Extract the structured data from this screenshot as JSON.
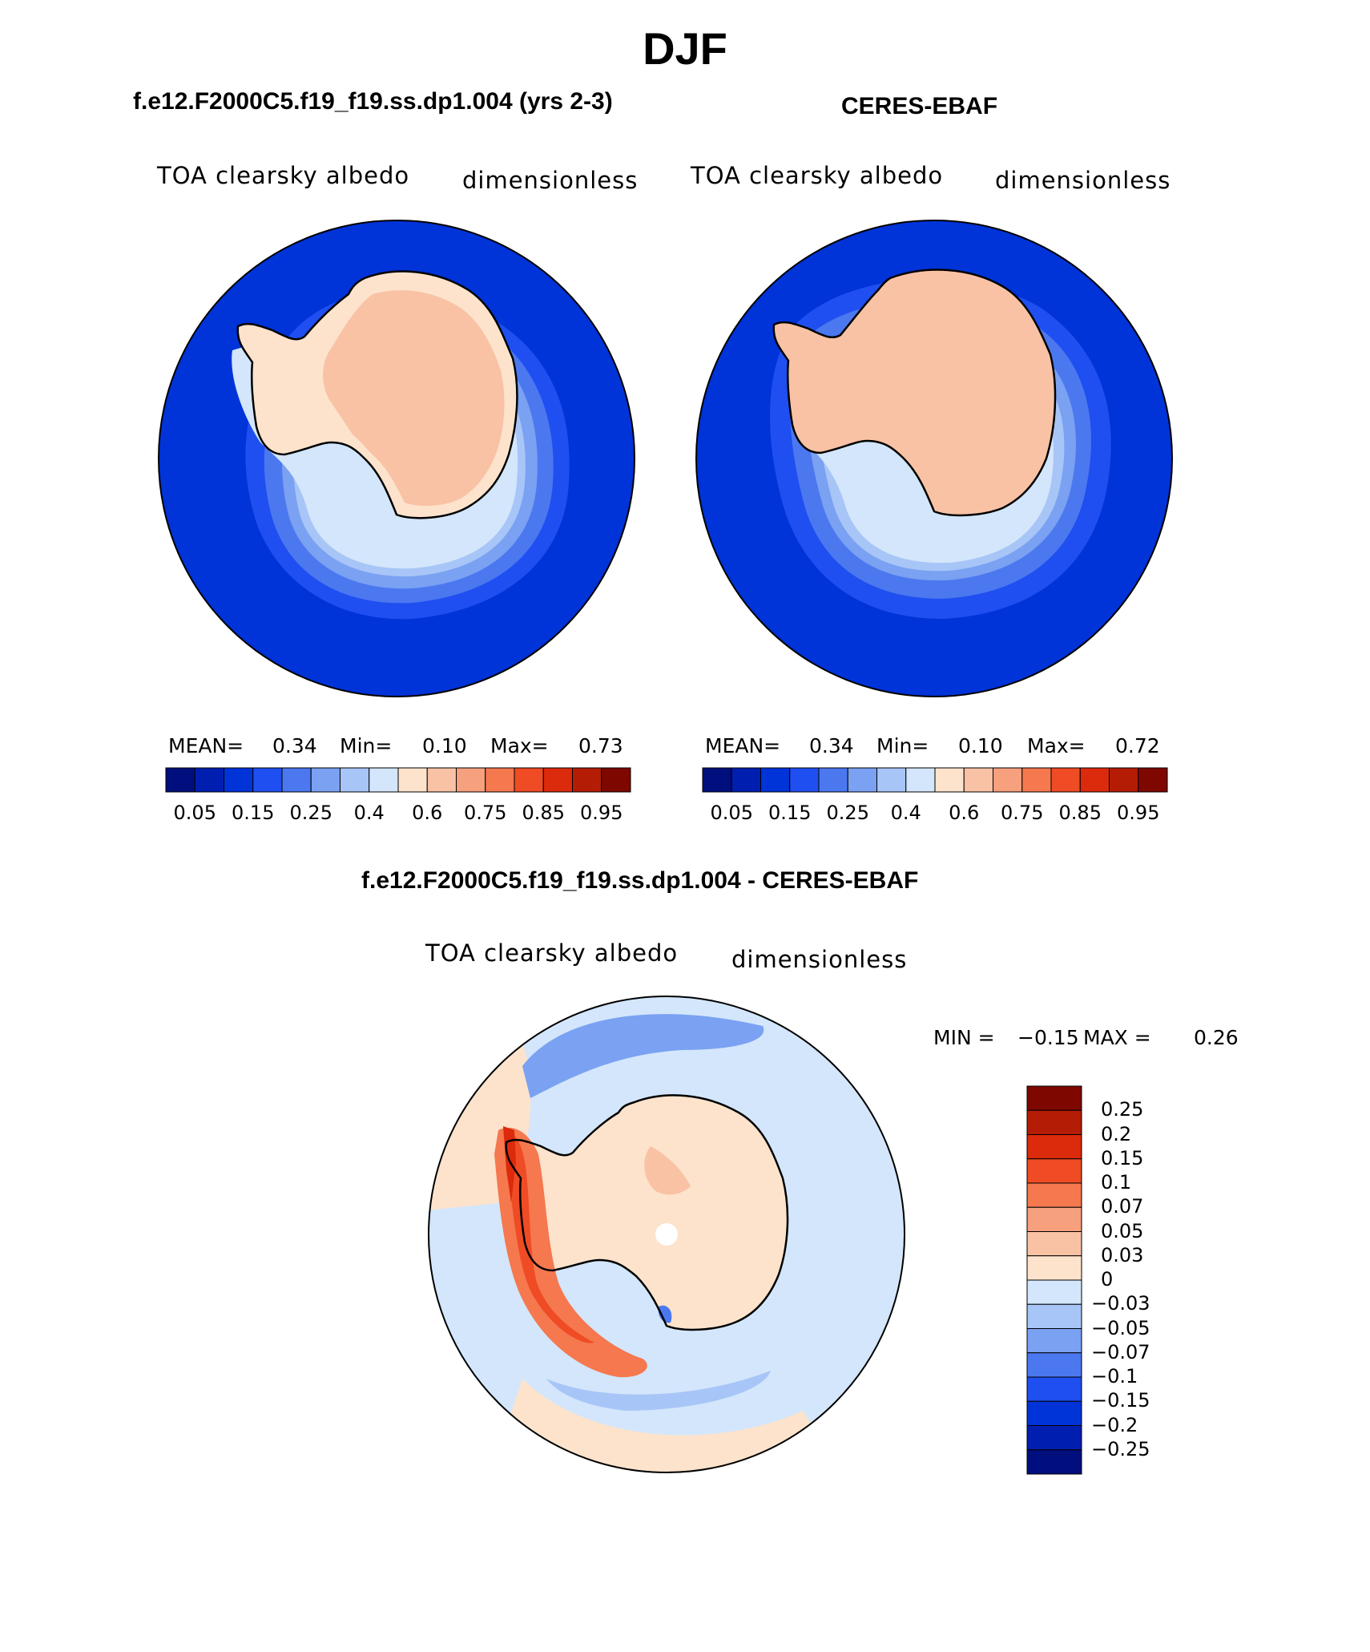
{
  "figure_title": "DJF",
  "panels": [
    {
      "case_title": "f.e12.F2000C5.f19_f19.ss.dp1.004 (yrs 2-3)",
      "left_label": "TOA clearsky albedo",
      "right_label": "dimensionless",
      "stats": {
        "mean_label": "MEAN=",
        "mean": "0.34",
        "min_label": "Min=",
        "min": "0.10",
        "max_label": "Max=",
        "max": "0.73"
      }
    },
    {
      "case_title": "CERES-EBAF",
      "left_label": "TOA clearsky albedo",
      "right_label": "dimensionless",
      "stats": {
        "mean_label": "MEAN=",
        "mean": "0.34",
        "min_label": "Min=",
        "min": "0.10",
        "max_label": "Max=",
        "max": "0.72"
      }
    }
  ],
  "diff_panel": {
    "case_title": "f.e12.F2000C5.f19_f19.ss.dp1.004 - CERES-EBAF",
    "left_label": "TOA clearsky albedo",
    "right_label": "dimensionless",
    "minmax": {
      "min_label": "MIN =",
      "min": "−0.15",
      "max_label": "MAX =",
      "max": "0.26"
    }
  },
  "colorbar_main": {
    "colors": [
      "#000f7d",
      "#001fb0",
      "#0034d8",
      "#1f4ff0",
      "#4b78ef",
      "#7aa1f2",
      "#a8c5f7",
      "#d3e6fb",
      "#fde3cc",
      "#f9c2a5",
      "#f6a07e",
      "#f5784f",
      "#ef4b24",
      "#dc2a0c",
      "#b51c06",
      "#7e0800"
    ],
    "tick_labels": [
      "0.05",
      "0.15",
      "0.25",
      "0.4",
      "0.6",
      "0.75",
      "0.85",
      "0.95"
    ]
  },
  "colorbar_diff": {
    "colors": [
      "#7e0800",
      "#b51c06",
      "#dc2a0c",
      "#ef4b24",
      "#f5784f",
      "#f6a07e",
      "#f9c2a5",
      "#fde3cc",
      "#d3e6fb",
      "#a8c5f7",
      "#7aa1f2",
      "#4b78ef",
      "#1f4ff0",
      "#0034d8",
      "#001fb0",
      "#000f7d"
    ],
    "tick_labels": [
      "0.25",
      "0.2",
      "0.15",
      "0.1",
      "0.07",
      "0.05",
      "0.03",
      "0",
      "−0.03",
      "−0.05",
      "−0.07",
      "−0.1",
      "−0.15",
      "−0.2",
      "−0.25"
    ]
  },
  "map_colors": {
    "ocean": "#0034d8",
    "ring1": "#1f4ff0",
    "ring2": "#4b78ef",
    "ring3": "#7aa1f2",
    "ring4": "#a8c5f7",
    "ring5": "#d3e6fb",
    "land_low": "#fde3cc",
    "land": "#f9c2a5",
    "land_high": "#f6a07e",
    "diff_bg": "#d3e6fb",
    "diff_pos1": "#fde3cc",
    "diff_pos2": "#f9c2a5",
    "diff_pos3": "#f5784f",
    "diff_pos4": "#ef4b24",
    "diff_pos5": "#dc2a0c",
    "diff_neg1": "#a8c5f7",
    "diff_neg2": "#7aa1f2",
    "diff_neg3": "#4b78ef"
  }
}
